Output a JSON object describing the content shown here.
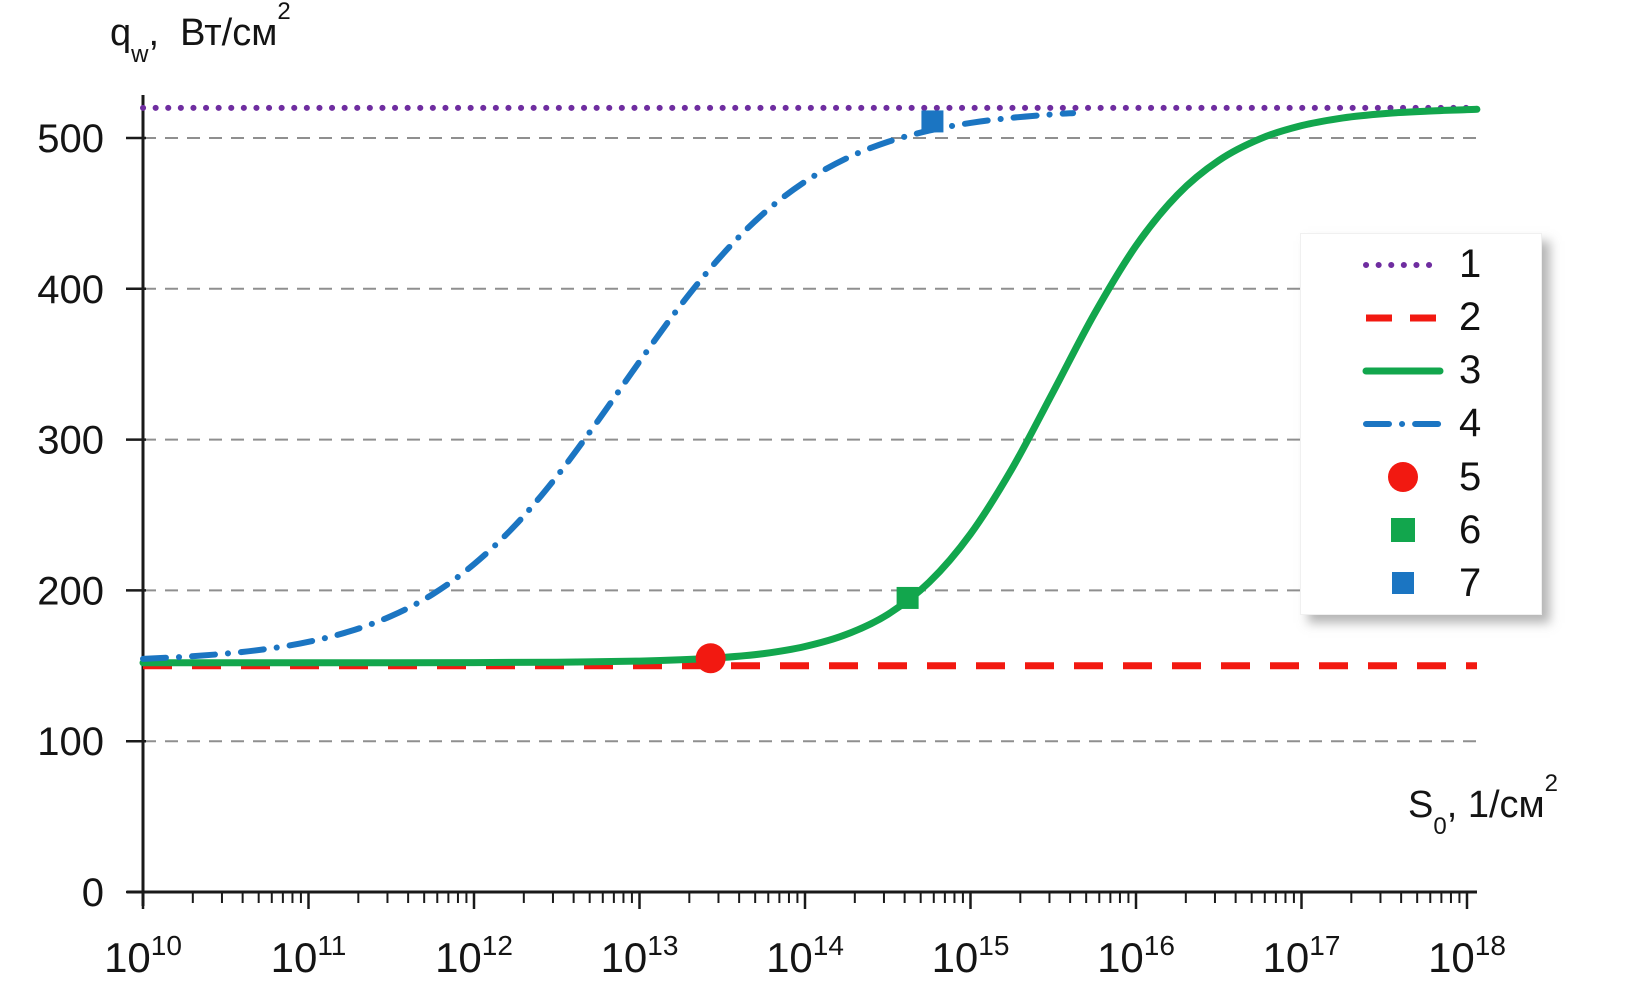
{
  "figure": {
    "y_axis_label": {
      "prefix": "q",
      "prefix_sub": "w",
      "comma": ",  ",
      "unit": "Вт/см",
      "unit_sup": "2"
    },
    "x_axis_label": {
      "prefix": "S",
      "prefix_sub": "0",
      "comma": ", ",
      "unit": "1/см",
      "unit_sup": "2"
    }
  },
  "chart_data": {
    "type": "line",
    "title": "",
    "xlabel": "S0, 1/см²",
    "ylabel": "qw, Вт/см²",
    "x_scale": "log10",
    "xlim_exponents": [
      10,
      18.06
    ],
    "x_ticks_exponents": [
      10,
      11,
      12,
      13,
      14,
      15,
      16,
      17,
      18
    ],
    "x_tick_base": "10",
    "ylim": [
      0,
      540
    ],
    "y_ticks": [
      0,
      100,
      200,
      300,
      400,
      500
    ],
    "grid": {
      "y_gridlines": [
        100,
        200,
        300,
        400,
        500
      ],
      "style": "dashed",
      "color": "#8f8f8f"
    },
    "legend_position": "right",
    "series": [
      {
        "id": 1,
        "label": "1",
        "type": "hline",
        "style": "dotted",
        "color": "#6F2DA0",
        "value": 520
      },
      {
        "id": 2,
        "label": "2",
        "type": "hline",
        "style": "dashed",
        "color": "#F21911",
        "value": 150
      },
      {
        "id": 3,
        "label": "3",
        "type": "curve",
        "style": "solid",
        "color": "#12A64D",
        "points": [
          [
            10,
            152
          ],
          [
            10.5,
            152
          ],
          [
            11,
            152
          ],
          [
            11.5,
            152
          ],
          [
            12,
            152.1
          ],
          [
            12.5,
            152.4
          ],
          [
            13,
            153.1
          ],
          [
            13.25,
            154.0
          ],
          [
            13.5,
            155.5
          ],
          [
            13.75,
            158.1
          ],
          [
            14,
            162.8
          ],
          [
            14.25,
            170.8
          ],
          [
            14.5,
            184.1
          ],
          [
            14.75,
            205.4
          ],
          [
            15,
            237.4
          ],
          [
            15.25,
            280.6
          ],
          [
            15.5,
            331.8
          ],
          [
            15.75,
            383.6
          ],
          [
            16,
            428.5
          ],
          [
            16.25,
            462.3
          ],
          [
            16.5,
            485.1
          ],
          [
            16.75,
            499.5
          ],
          [
            17,
            508.2
          ],
          [
            17.25,
            513.3
          ],
          [
            17.5,
            516.2
          ],
          [
            17.75,
            517.8
          ],
          [
            18,
            518.8
          ],
          [
            18.06,
            519.0
          ]
        ]
      },
      {
        "id": 4,
        "label": "4",
        "type": "curve",
        "style": "dashdot",
        "color": "#1B75C2",
        "points": [
          [
            10,
            154.6
          ],
          [
            10.25,
            156.0
          ],
          [
            10.5,
            158.1
          ],
          [
            10.75,
            161.2
          ],
          [
            11,
            165.9
          ],
          [
            11.25,
            172.9
          ],
          [
            11.5,
            183.0
          ],
          [
            11.75,
            197.4
          ],
          [
            12,
            217.4
          ],
          [
            12.25,
            243.3
          ],
          [
            12.5,
            275.6
          ],
          [
            12.75,
            312.6
          ],
          [
            13,
            351.7
          ],
          [
            13.25,
            389.3
          ],
          [
            13.5,
            422.6
          ],
          [
            13.75,
            450.0
          ],
          [
            14,
            471.0
          ],
          [
            14.25,
            486.5
          ],
          [
            14.5,
            497.4
          ],
          [
            14.75,
            504.9
          ],
          [
            15,
            510.0
          ],
          [
            15.25,
            513.4
          ],
          [
            15.5,
            515.7
          ],
          [
            15.62,
            516.5
          ]
        ]
      },
      {
        "id": 5,
        "label": "5",
        "type": "marker",
        "marker": "circle",
        "color": "#F21911",
        "x_exponent": 13.43,
        "y": 155
      },
      {
        "id": 6,
        "label": "6",
        "type": "marker",
        "marker": "square",
        "color": "#12A64D",
        "x_exponent": 14.62,
        "y": 195
      },
      {
        "id": 7,
        "label": "7",
        "type": "marker",
        "marker": "square",
        "color": "#1B75C2",
        "x_exponent": 14.77,
        "y": 511
      }
    ]
  }
}
